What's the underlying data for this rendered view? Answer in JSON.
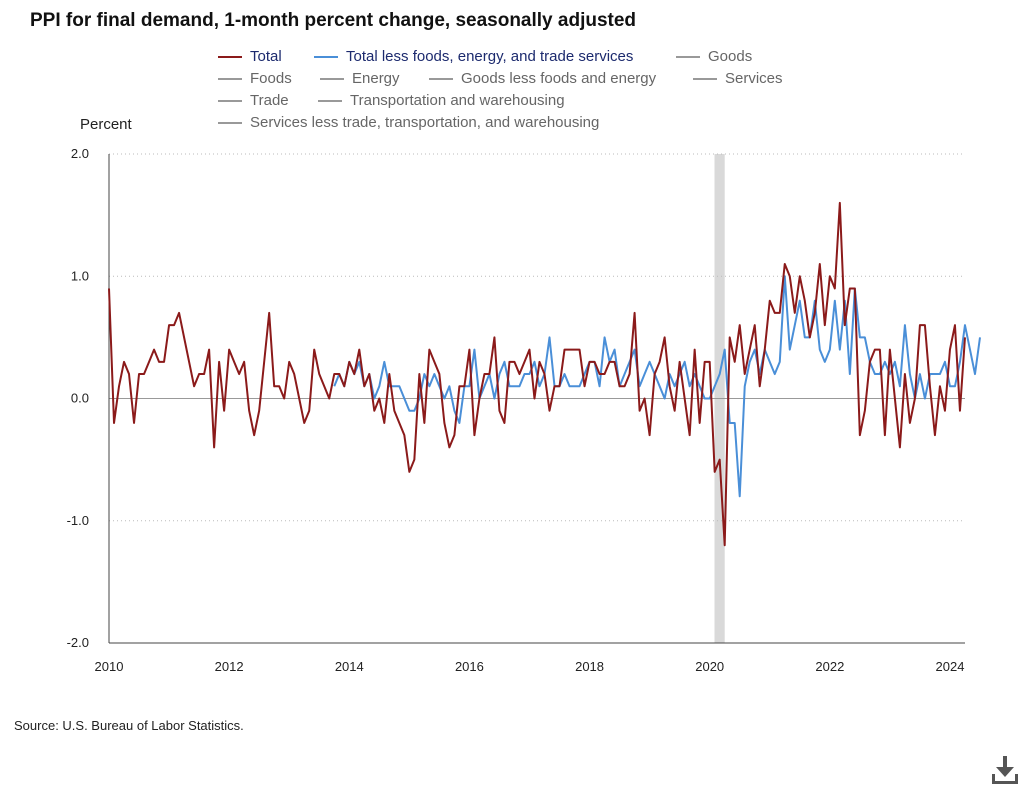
{
  "title": "PPI for final demand, 1-month percent change, seasonally adjusted",
  "source": "Source: U.S. Bureau of Labor Statistics.",
  "legend": [
    {
      "label": "Total",
      "color": "#8b1a1a",
      "active": true
    },
    {
      "label": "Total less foods, energy, and trade services",
      "color": "#4a8fd8",
      "active": true
    },
    {
      "label": "Goods",
      "color": "#999999",
      "active": false
    },
    {
      "label": "Foods",
      "color": "#999999",
      "active": false
    },
    {
      "label": "Energy",
      "color": "#999999",
      "active": false
    },
    {
      "label": "Goods less foods and energy",
      "color": "#999999",
      "active": false
    },
    {
      "label": "Services",
      "color": "#999999",
      "active": false
    },
    {
      "label": "Trade",
      "color": "#999999",
      "active": false
    },
    {
      "label": "Transportation and warehousing",
      "color": "#999999",
      "active": false
    },
    {
      "label": "Services less trade, transportation, and warehousing",
      "color": "#999999",
      "active": false
    }
  ],
  "download_icon": "download-icon",
  "chart_data": {
    "type": "line",
    "title": "PPI for final demand, 1-month percent change, seasonally adjusted",
    "ylabel": "Percent",
    "xlabel": "",
    "ylim": [
      -2.0,
      2.0
    ],
    "yticks": [
      "2.0",
      "1.0",
      "0.0",
      "-1.0",
      "-2.0"
    ],
    "ytick_values": [
      2.0,
      1.0,
      0.0,
      -1.0,
      -2.0
    ],
    "xticks": [
      "2010",
      "2012",
      "2014",
      "2016",
      "2018",
      "2020",
      "2022",
      "2024"
    ],
    "xtick_values": [
      2010,
      2012,
      2014,
      2016,
      2018,
      2020,
      2022,
      2024
    ],
    "xlim": [
      2010.0,
      2024.25
    ],
    "grid": "horizontal dotted",
    "recession_band": [
      2020.08,
      2020.25
    ],
    "series": [
      {
        "name": "Total",
        "color": "#8b1a1a",
        "start": 2010.0,
        "step": 0.08333,
        "values": [
          0.9,
          -0.2,
          0.1,
          0.3,
          0.2,
          -0.2,
          0.2,
          0.2,
          0.3,
          0.4,
          0.3,
          0.3,
          0.6,
          0.6,
          0.7,
          0.5,
          0.3,
          0.1,
          0.2,
          0.2,
          0.4,
          -0.4,
          0.3,
          -0.1,
          0.4,
          0.3,
          0.2,
          0.3,
          -0.1,
          -0.3,
          -0.1,
          0.3,
          0.7,
          0.1,
          0.1,
          0.0,
          0.3,
          0.2,
          0.0,
          -0.2,
          -0.1,
          0.4,
          0.2,
          0.1,
          0.0,
          0.2,
          0.2,
          0.1,
          0.3,
          0.2,
          0.4,
          0.1,
          0.2,
          -0.1,
          0.0,
          -0.2,
          0.2,
          -0.1,
          -0.2,
          -0.3,
          -0.6,
          -0.5,
          0.2,
          -0.2,
          0.4,
          0.3,
          0.2,
          -0.2,
          -0.4,
          -0.3,
          0.1,
          0.1,
          0.4,
          -0.3,
          0.0,
          0.2,
          0.2,
          0.5,
          -0.1,
          -0.2,
          0.3,
          0.3,
          0.2,
          0.3,
          0.4,
          0.0,
          0.3,
          0.2,
          -0.1,
          0.1,
          0.1,
          0.4,
          0.4,
          0.4,
          0.4,
          0.1,
          0.3,
          0.3,
          0.2,
          0.2,
          0.3,
          0.3,
          0.1,
          0.1,
          0.2,
          0.7,
          -0.1,
          0.0,
          -0.3,
          0.2,
          0.3,
          0.5,
          0.1,
          -0.1,
          0.3,
          0.0,
          -0.3,
          0.4,
          -0.2,
          0.3,
          0.3,
          -0.6,
          -0.5,
          -1.2,
          0.5,
          0.3,
          0.6,
          0.2,
          0.4,
          0.6,
          0.1,
          0.4,
          0.8,
          0.7,
          0.7,
          1.1,
          1.0,
          0.7,
          1.0,
          0.8,
          0.5,
          0.7,
          1.1,
          0.6,
          1.0,
          0.9,
          1.6,
          0.6,
          0.9,
          0.9,
          -0.3,
          -0.1,
          0.3,
          0.4,
          0.4,
          -0.3,
          0.4,
          0.0,
          -0.4,
          0.2,
          -0.2,
          0.0,
          0.6,
          0.6,
          0.1,
          -0.3,
          0.1,
          -0.1,
          0.4,
          0.6,
          -0.1,
          0.5
        ]
      },
      {
        "name": "Total less foods, energy, and trade services",
        "color": "#4a8fd8",
        "start": 2013.75,
        "step": 0.08333,
        "values": [
          0.1,
          0.2,
          0.1,
          0.3,
          0.2,
          0.3,
          0.1,
          0.2,
          0.0,
          0.1,
          0.3,
          0.1,
          0.1,
          0.1,
          0.0,
          -0.1,
          -0.1,
          0.0,
          0.2,
          0.1,
          0.2,
          0.1,
          0.0,
          0.1,
          -0.1,
          -0.2,
          0.1,
          0.1,
          0.4,
          0.0,
          0.1,
          0.2,
          0.0,
          0.2,
          0.3,
          0.1,
          0.1,
          0.1,
          0.2,
          0.2,
          0.3,
          0.1,
          0.2,
          0.5,
          0.1,
          0.1,
          0.2,
          0.1,
          0.1,
          0.1,
          0.2,
          0.3,
          0.3,
          0.1,
          0.5,
          0.3,
          0.4,
          0.1,
          0.2,
          0.3,
          0.4,
          0.1,
          0.2,
          0.3,
          0.2,
          0.1,
          0.0,
          0.2,
          0.1,
          0.2,
          0.3,
          0.1,
          0.2,
          0.1,
          0.0,
          0.0,
          0.1,
          0.2,
          0.4,
          -0.2,
          -0.2,
          -0.8,
          0.1,
          0.3,
          0.4,
          0.2,
          0.4,
          0.3,
          0.2,
          0.3,
          1.0,
          0.4,
          0.6,
          0.8,
          0.5,
          0.5,
          0.8,
          0.4,
          0.3,
          0.4,
          0.8,
          0.4,
          0.8,
          0.2,
          0.9,
          0.5,
          0.5,
          0.3,
          0.2,
          0.2,
          0.3,
          0.2,
          0.3,
          0.1,
          0.6,
          0.2,
          0.0,
          0.2,
          0.0,
          0.2,
          0.2,
          0.2,
          0.3,
          0.1,
          0.1,
          0.3,
          0.6,
          0.4,
          0.2,
          0.5
        ]
      }
    ]
  }
}
